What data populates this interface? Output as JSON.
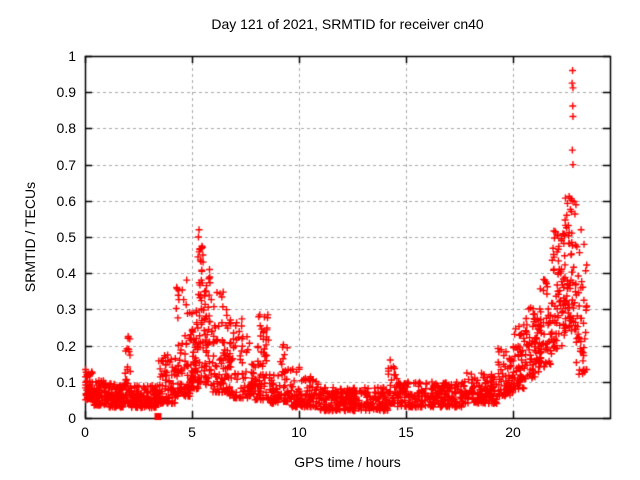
{
  "page": {
    "background": "#ffffff"
  },
  "chart_data": {
    "type": "scatter",
    "title": "Day 121 of 2021, SRMTID for receiver cn40",
    "xlabel": "GPS time / hours",
    "ylabel": "SRMTID / TECUs",
    "xlim": [
      0,
      24.53
    ],
    "ylim": [
      0,
      1
    ],
    "grid": true,
    "grid_style": "dashed",
    "x_ticks": {
      "values": [
        0,
        5,
        10,
        15,
        20
      ],
      "labels": [
        "0",
        "5",
        "10",
        "15",
        "20"
      ]
    },
    "y_ticks": {
      "values": [
        0,
        0.1,
        0.2,
        0.3,
        0.4,
        0.5,
        0.6,
        0.7,
        0.8,
        0.9,
        1
      ],
      "labels": [
        "0",
        "0.1",
        "0.2",
        "0.3",
        "0.4",
        "0.5",
        "0.6",
        "0.7",
        "0.8",
        "0.9",
        "1"
      ]
    },
    "colors": {
      "marker": "#ff0000",
      "grid": "#aaaaaa",
      "axis": "#000000",
      "text": "#000000"
    },
    "marker": {
      "shape": "plus",
      "size": 7,
      "line_width": 1.4
    },
    "seed": 42,
    "series": [
      {
        "name": "srmtid",
        "marker": "plus",
        "color": "#ff0000",
        "density_bands_format": [
          "x_start_hr",
          "x_end_hr",
          "n_points",
          "y_min",
          "y_max",
          "bottom_bias_exp"
        ],
        "density_bands": [
          [
            0.02,
            0.35,
            55,
            0.05,
            0.135,
            1.6
          ],
          [
            0.35,
            1.1,
            85,
            0.035,
            0.105,
            1.5
          ],
          [
            1.1,
            1.85,
            85,
            0.03,
            0.095,
            1.5
          ],
          [
            1.85,
            2.15,
            38,
            0.04,
            0.23,
            2.2
          ],
          [
            2.15,
            3.4,
            125,
            0.028,
            0.09,
            1.5
          ],
          [
            3.4,
            4.25,
            85,
            0.04,
            0.175,
            1.8
          ],
          [
            4.25,
            4.95,
            80,
            0.06,
            0.39,
            2.0
          ],
          [
            4.95,
            5.3,
            55,
            0.08,
            0.3,
            1.6
          ],
          [
            5.3,
            5.6,
            48,
            0.1,
            0.48,
            1.7
          ],
          [
            5.6,
            5.95,
            45,
            0.09,
            0.43,
            1.8
          ],
          [
            5.95,
            6.7,
            75,
            0.07,
            0.355,
            2.0
          ],
          [
            6.7,
            7.7,
            90,
            0.055,
            0.28,
            2.2
          ],
          [
            7.7,
            8.05,
            30,
            0.05,
            0.15,
            1.8
          ],
          [
            8.05,
            8.6,
            60,
            0.05,
            0.3,
            1.8
          ],
          [
            8.6,
            9.1,
            45,
            0.04,
            0.12,
            1.5
          ],
          [
            9.1,
            9.5,
            35,
            0.045,
            0.215,
            2.2
          ],
          [
            9.5,
            10.1,
            50,
            0.03,
            0.145,
            1.8
          ],
          [
            10.1,
            10.9,
            65,
            0.03,
            0.12,
            1.8
          ],
          [
            10.9,
            14.15,
            280,
            0.02,
            0.085,
            1.4
          ],
          [
            14.15,
            14.6,
            35,
            0.04,
            0.17,
            2.0
          ],
          [
            14.6,
            17.6,
            240,
            0.03,
            0.1,
            1.5
          ],
          [
            17.6,
            19.25,
            140,
            0.04,
            0.125,
            1.5
          ],
          [
            19.25,
            20.0,
            70,
            0.06,
            0.2,
            1.4
          ],
          [
            20.0,
            20.6,
            60,
            0.08,
            0.26,
            1.3
          ],
          [
            20.6,
            21.2,
            60,
            0.11,
            0.31,
            1.2
          ],
          [
            21.2,
            21.8,
            60,
            0.14,
            0.385,
            1.2
          ],
          [
            21.8,
            22.4,
            70,
            0.19,
            0.52,
            1.3
          ],
          [
            22.4,
            22.95,
            70,
            0.24,
            0.615,
            1.3
          ],
          [
            22.95,
            23.45,
            45,
            0.12,
            0.5,
            1.4
          ]
        ],
        "notable_points": [
          [
            22.78,
            0.96
          ],
          [
            22.76,
            0.925
          ],
          [
            22.8,
            0.912
          ],
          [
            22.79,
            0.862
          ],
          [
            22.8,
            0.833
          ],
          [
            22.77,
            0.74
          ],
          [
            22.8,
            0.7
          ],
          [
            22.62,
            0.612
          ],
          [
            22.7,
            0.606
          ],
          [
            22.76,
            0.6
          ],
          [
            22.85,
            0.598
          ],
          [
            22.68,
            0.576
          ],
          [
            22.73,
            0.57
          ],
          [
            22.45,
            0.532
          ],
          [
            23.18,
            0.52
          ],
          [
            5.33,
            0.52
          ],
          [
            5.3,
            0.5
          ],
          [
            5.36,
            0.465
          ],
          [
            5.28,
            0.445
          ],
          [
            5.42,
            0.432
          ],
          [
            2.02,
            0.225
          ],
          [
            2.04,
            0.19
          ]
        ]
      },
      {
        "name": "flag",
        "marker": "filled-square",
        "color": "#ff0000",
        "size": 7,
        "points": [
          [
            3.41,
            0.004
          ]
        ]
      }
    ]
  }
}
